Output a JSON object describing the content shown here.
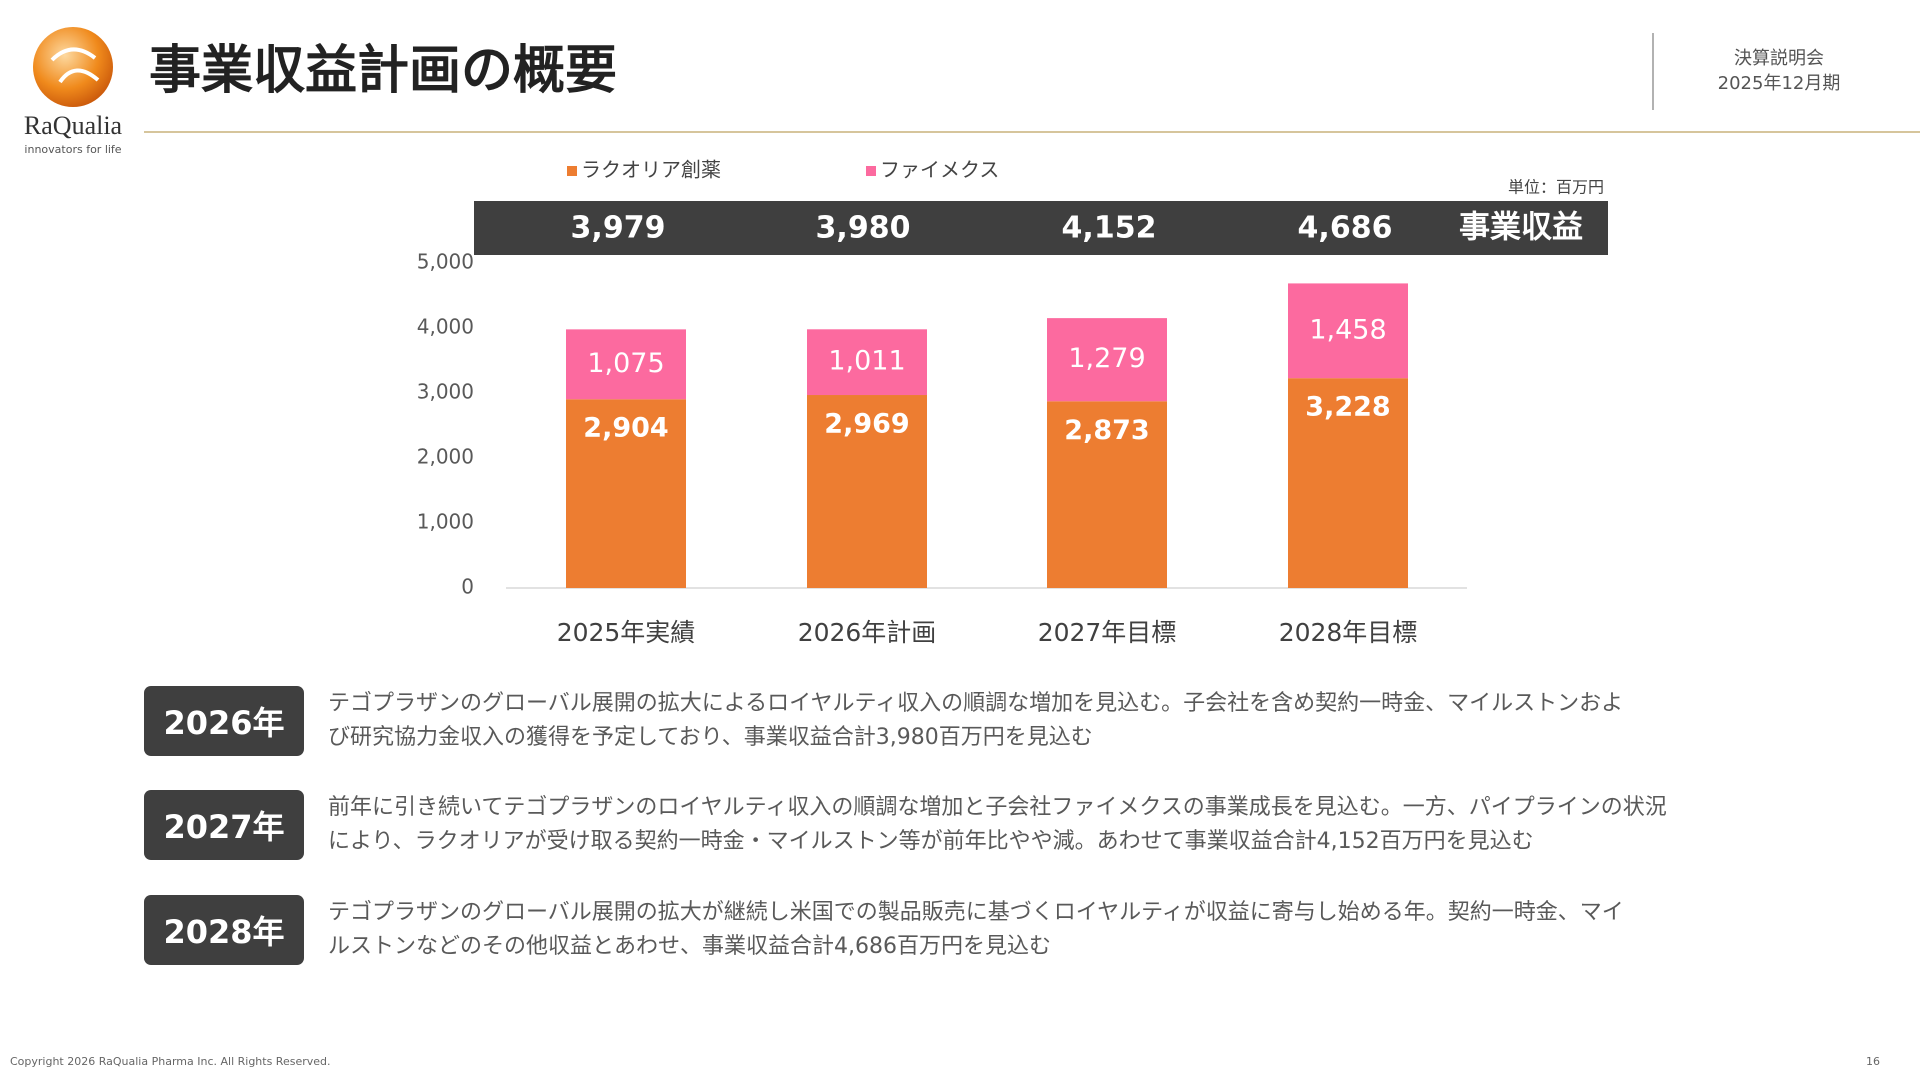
{
  "header": {
    "title": "事業収益計画の概要",
    "logo_name": "RaQualia",
    "logo_tagline": "innovators for life",
    "event": "決算説明会",
    "period": "2025年12月期"
  },
  "chart_data": {
    "type": "stacked_bar",
    "unit": "単位：百万円",
    "categories": [
      "2025年実績",
      "2026年計画",
      "2027年目標",
      "2028年目標"
    ],
    "series": [
      {
        "name": "ラクオリア創薬",
        "color": "#ed7d31",
        "values": [
          2904,
          2969,
          2873,
          3228
        ],
        "value_labels": [
          "2,904",
          "2,969",
          "2,873",
          "3,228"
        ]
      },
      {
        "name": "ファイメクス",
        "color": "#fc6a9f",
        "values": [
          1075,
          1011,
          1279,
          1458
        ],
        "value_labels": [
          "1,075",
          "1,011",
          "1,279",
          "1,458"
        ]
      }
    ],
    "totals": {
      "label": "事業収益",
      "values": [
        3979,
        3980,
        4152,
        4686
      ],
      "value_labels": [
        "3,979",
        "3,980",
        "4,152",
        "4,686"
      ]
    },
    "ylim": [
      0,
      5000
    ],
    "yticks": [
      0,
      {
        "value": 1000,
        "label": "1,000"
      },
      {
        "value": 2000,
        "label": "2,000"
      },
      {
        "value": 3000,
        "label": "3,000"
      },
      {
        "value": 4000,
        "label": "4,000"
      },
      {
        "value": 5000,
        "label": "5,000"
      }
    ]
  },
  "notes": [
    {
      "year": "2026年",
      "lines": [
        "テゴプラザンのグローバル展開の拡大によるロイヤルティ収入の順調な増加を見込む。子会社を含め契約一時金、マイルストンおよ",
        "び研究協力金収入の獲得を予定しており、事業収益合計3,980百万円を見込む"
      ]
    },
    {
      "year": "2027年",
      "lines": [
        "前年に引き続いてテゴプラザンのロイヤルティ収入の順調な増加と子会社ファイメクスの事業成長を見込む。一方、パイプラインの状況",
        "により、ラクオリアが受け取る契約一時金・マイルストン等が前年比やや減。あわせて事業収益合計4,152百万円を見込む"
      ]
    },
    {
      "year": "2028年",
      "lines": [
        "テゴプラザンのグローバル展開の拡大が継続し米国での製品販売に基づくロイヤルティが収益に寄与し始める年。契約一時金、マイ",
        "ルストンなどのその他収益とあわせ、事業収益合計4,686百万円を見込む"
      ]
    }
  ],
  "footer": {
    "copyright": "Copyright 2026 RaQualia Pharma Inc. All Rights Reserved.",
    "page": "16"
  }
}
